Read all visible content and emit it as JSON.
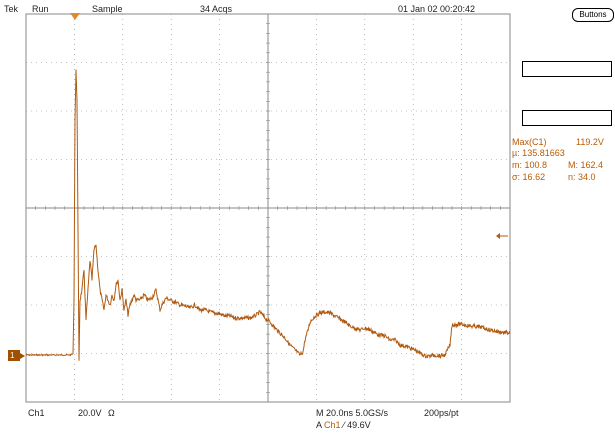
{
  "header": {
    "brand": "Tek",
    "mode": "Run",
    "acq_mode": "Sample",
    "acqs": "34 Acqs",
    "datetime": "01 Jan 02 00:20:42"
  },
  "side_panel": {
    "buttons_label": "Buttons",
    "measure": {
      "name": "Max(C1)",
      "value": "119.2V",
      "mean": "µ: 135.81663",
      "min": "m: 100.8",
      "max": "M: 162.4",
      "sigma": "σ: 16.62",
      "count": "n: 34.0"
    }
  },
  "footer": {
    "channel": "Ch1",
    "volts_div": "20.0V",
    "impedance": "Ω",
    "timebase": "M 20.0ns 5.0GS/s",
    "record": "200ps/pt",
    "trigger_prefix": "A",
    "trigger_channel": "Ch1",
    "trigger_slope": "⁄",
    "trigger_level": "49.6V"
  },
  "channel_marker": "1",
  "colors": {
    "trace": "#b05a10",
    "grid": "#8a8a8a"
  }
}
